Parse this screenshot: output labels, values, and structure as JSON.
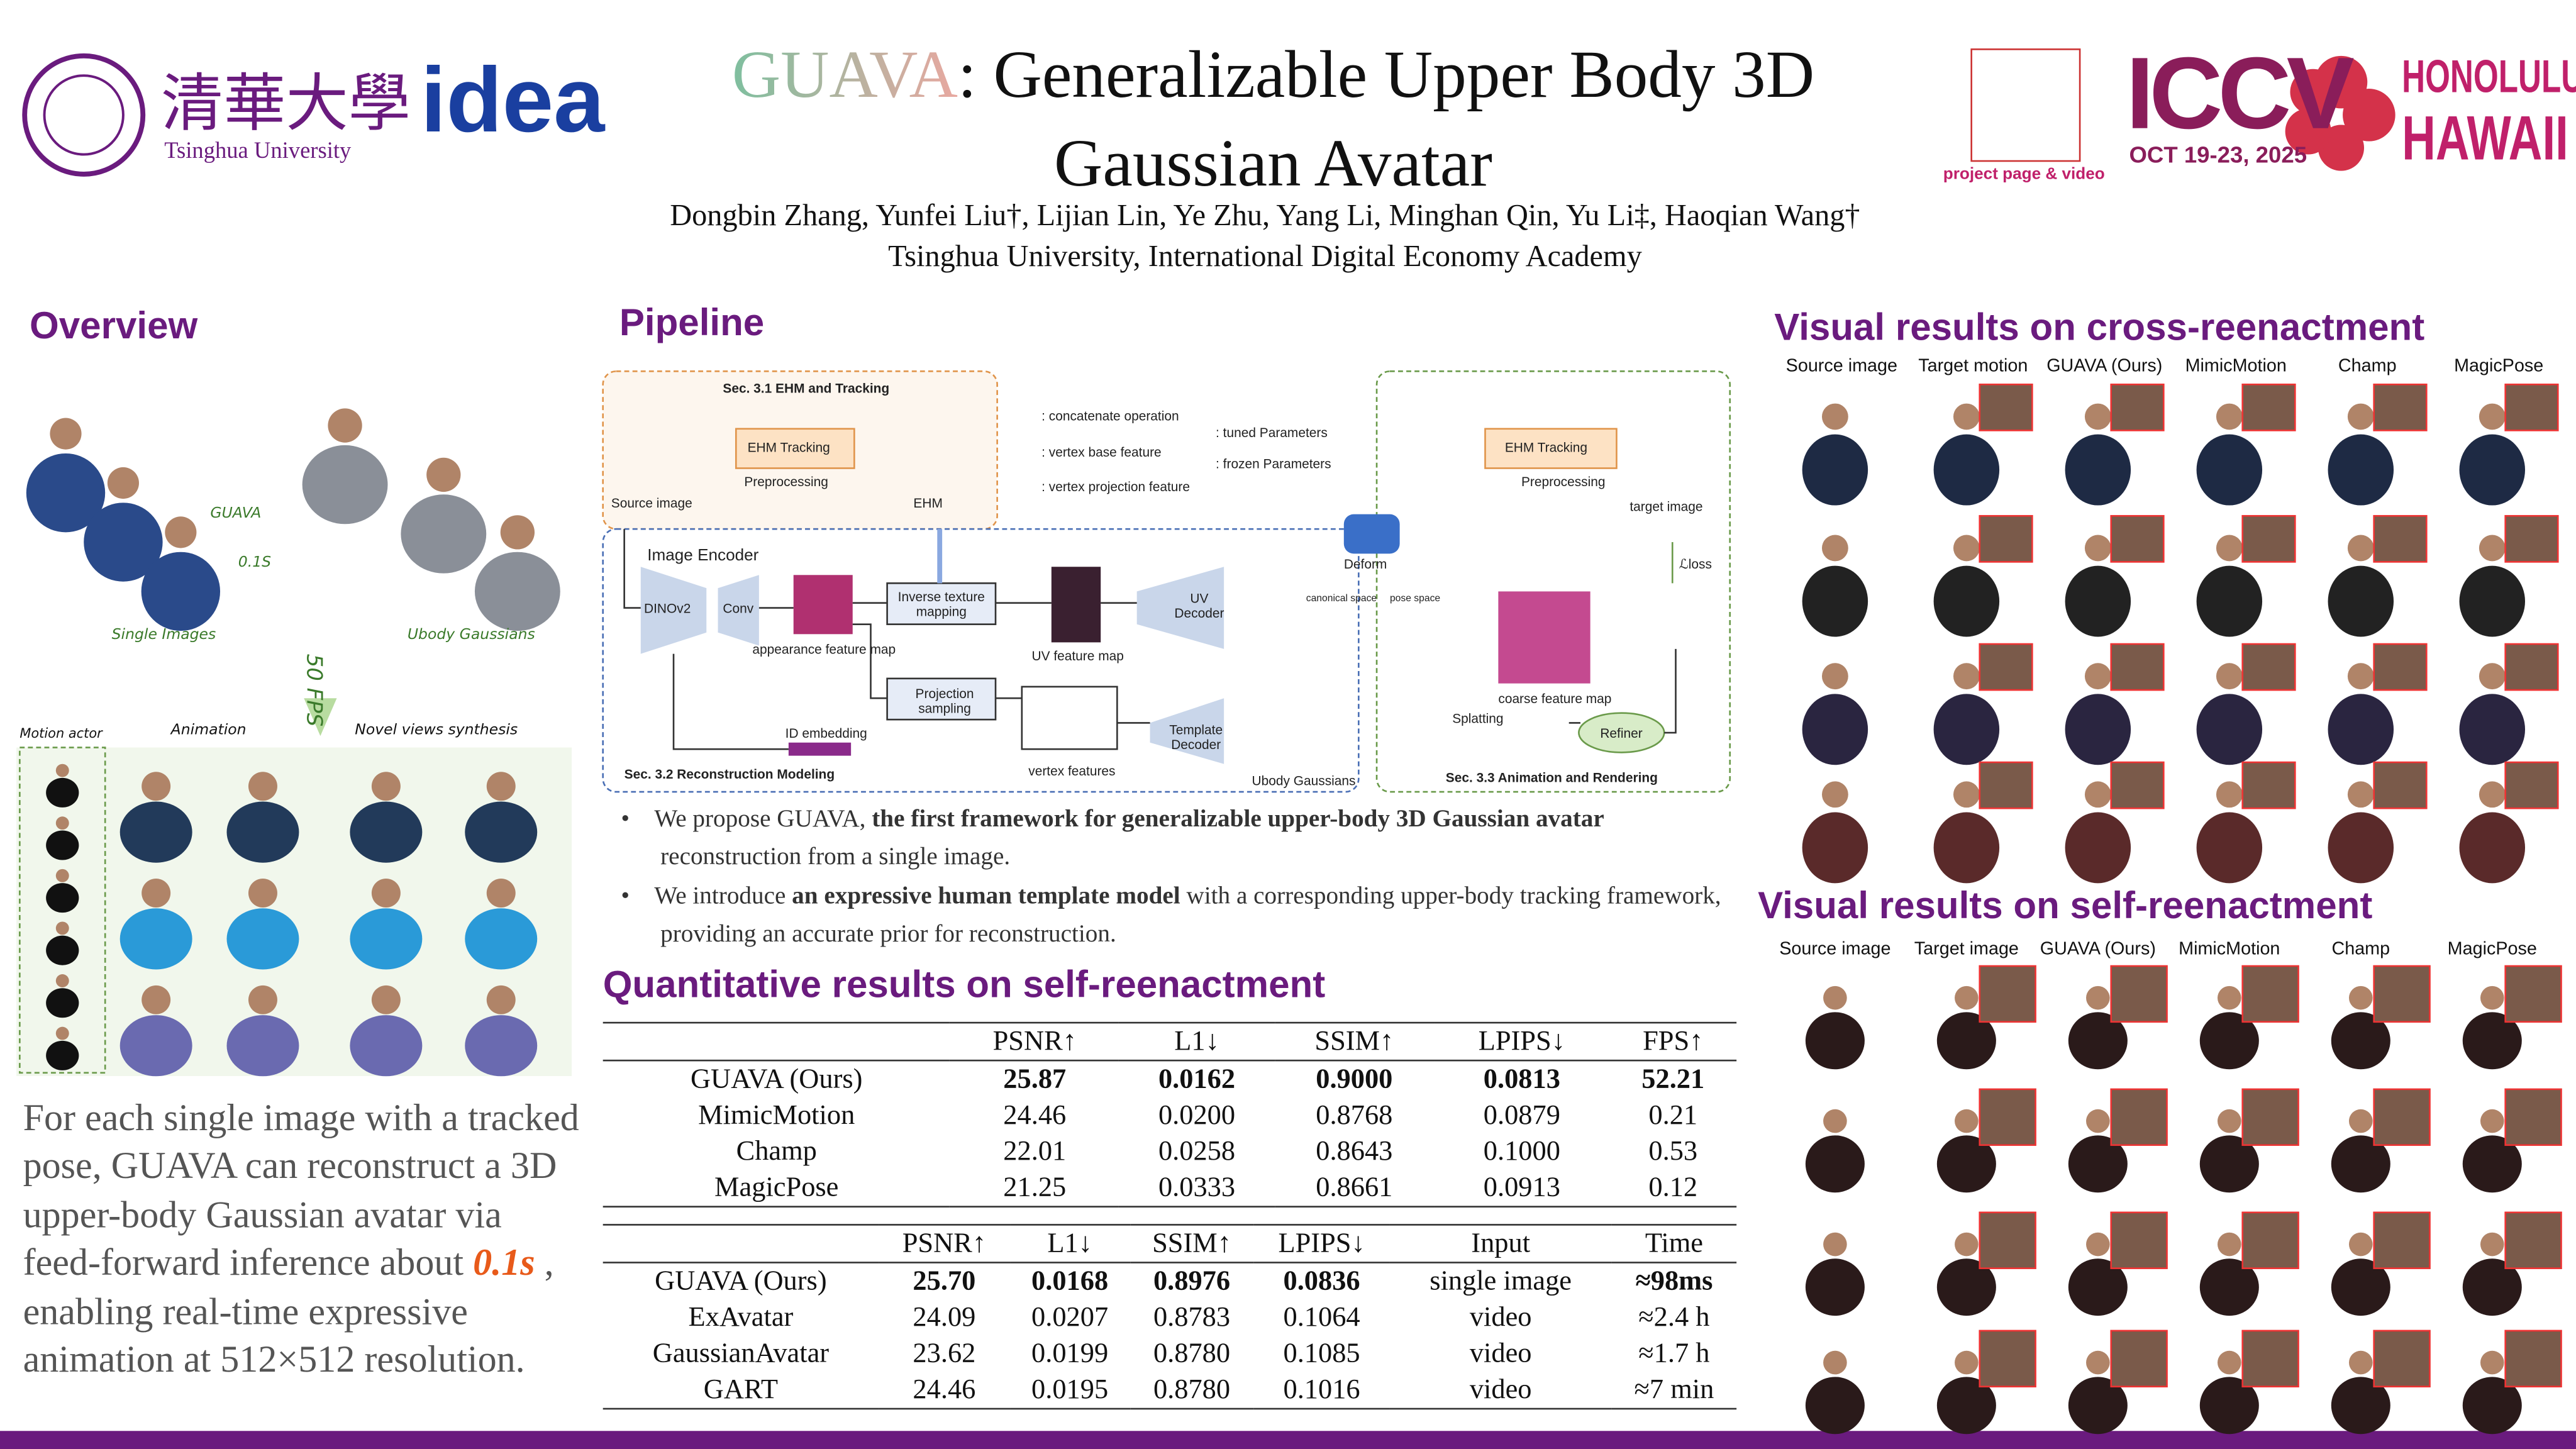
{
  "header": {
    "logo_cn": "清華大學",
    "logo_en": "Tsinghua University",
    "logo_idea": "idea",
    "title_highlight": "GUAVA",
    "title_rest": ": Generalizable Upper Body 3D Gaussian Avatar",
    "authors": "Dongbin Zhang, Yunfei Liu†,  Lijian Lin,  Ye Zhu, Yang Li,  Minghan Qin, Yu Li‡, Haoqian Wang†",
    "affiliation": "Tsinghua University, International Digital Economy Academy",
    "qr_caption": "project page & video",
    "conference": "ICCV",
    "dates": "OCT 19-23, 2025",
    "city": "HONOLULU",
    "state": "HAWAII"
  },
  "overview": {
    "heading": "Overview",
    "guava": "GUAVA",
    "time": "0.1S",
    "single_images": "Single Images",
    "ubody_gaussians": "Ubody Gaussians",
    "fps": "50 FPS",
    "motion_actor": "Motion actor",
    "animation": "Animation",
    "novel_views": "Novel views synthesis",
    "text_before": "For each single image with a tracked pose, GUAVA can reconstruct a 3D upper-body Gaussian avatar via feed-forward inference about ",
    "text_highlight": "0.1s",
    "text_after": " , enabling real-time expressive animation at 512×512 resolution."
  },
  "pipeline": {
    "heading": "Pipeline",
    "sec1": "Sec. 3.1 EHM and Tracking",
    "ehm_tracking": "EHM Tracking",
    "preprocessing": "Preprocessing",
    "source_image": "Source image",
    "ehm": "EHM",
    "legend_concat": ": concatenate operation",
    "legend_base": ": vertex base feature",
    "legend_proj": ": vertex projection feature",
    "legend_tuned": ": tuned Parameters",
    "legend_frozen": ": frozen Parameters",
    "image_encoder": "Image Encoder",
    "dinov2": "DINOv2",
    "conv": "Conv",
    "appearance": "appearance feature map",
    "inverse": "Inverse texture mapping",
    "uv_map": "UV feature map",
    "uv_decoder": "UV Decoder",
    "projection": "Projection sampling",
    "id_embedding": "ID embedding",
    "vertex_features": "vertex features",
    "template_decoder": "Template Decoder",
    "ubody": "Ubody Gaussians",
    "canonical": "canonical space",
    "pose": "pose space",
    "deform": "Deform",
    "ehm_tracking2": "EHM Tracking",
    "preprocessing2": "Preprocessing",
    "target_image": "target image",
    "loss": "ℒloss",
    "coarse": "coarse feature map",
    "splatting": "Splatting",
    "refiner": "Refiner",
    "sec2": "Sec. 3.2 Reconstruction Modeling",
    "sec3": "Sec. 3.3 Animation and Rendering"
  },
  "bullets": [
    {
      "before": "We propose GUAVA, ",
      "bold": "the first framework for generalizable upper-body 3D Gaussian avatar",
      "after": " reconstruction from a single image."
    },
    {
      "before": "We introduce ",
      "bold": "an expressive human template model",
      "after": " with a corresponding upper-body tracking framework, providing an accurate prior for reconstruction."
    }
  ],
  "quantitative": {
    "heading": "Quantitative results on self-reenactment",
    "table1": {
      "header": [
        "PSNR↑",
        "L1↓",
        "SSIM↑",
        "LPIPS↓",
        "FPS↑"
      ],
      "rows": [
        [
          "GUAVA (Ours)",
          "25.87",
          "0.0162",
          "0.9000",
          "0.0813",
          "52.21"
        ],
        [
          "MimicMotion",
          "24.46",
          "0.0200",
          "0.8768",
          "0.0879",
          "0.21"
        ],
        [
          "Champ",
          "22.01",
          "0.0258",
          "0.8643",
          "0.1000",
          "0.53"
        ],
        [
          "MagicPose",
          "21.25",
          "0.0333",
          "0.8661",
          "0.0913",
          "0.12"
        ]
      ]
    },
    "table2": {
      "header": [
        "PSNR↑",
        "L1↓",
        "SSIM↑",
        "LPIPS↓",
        "Input",
        "Time"
      ],
      "rows": [
        [
          "GUAVA (Ours)",
          "25.70",
          "0.0168",
          "0.8976",
          "0.0836",
          "single image",
          "≈98ms"
        ],
        [
          "ExAvatar",
          "24.09",
          "0.0207",
          "0.8783",
          "0.1064",
          "video",
          "≈2.4 h"
        ],
        [
          "GaussianAvatar",
          "23.62",
          "0.0199",
          "0.8780",
          "0.1085",
          "video",
          "≈1.7 h"
        ],
        [
          "GART",
          "24.46",
          "0.0195",
          "0.8780",
          "0.1016",
          "video",
          "≈7 min"
        ]
      ]
    }
  },
  "cross": {
    "heading": "Visual results on cross-reenactment",
    "columns": [
      "Source image",
      "Target motion",
      "GUAVA (Ours)",
      "MimicMotion",
      "Champ",
      "MagicPose"
    ]
  },
  "self": {
    "heading": "Visual results on self-reenactment",
    "columns": [
      "Source image",
      "Target image",
      "GUAVA (Ours)",
      "MimicMotion",
      "Champ",
      "MagicPose"
    ]
  }
}
